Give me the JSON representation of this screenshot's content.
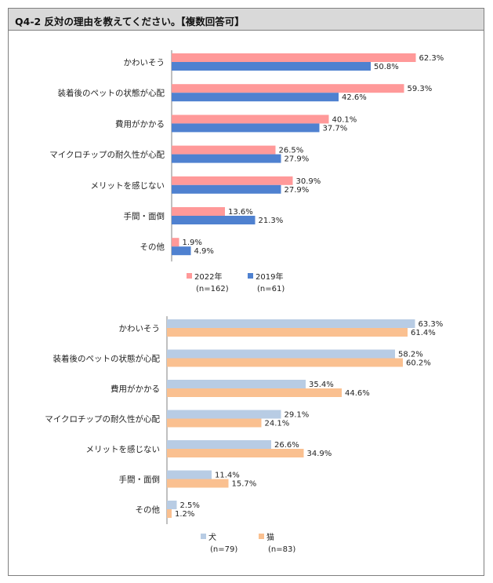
{
  "header": {
    "title": "Q4-2 反対の理由を教えてください。【複数回答可】"
  },
  "chart_data": [
    {
      "type": "bar",
      "orientation": "horizontal",
      "categories": [
        "かわいそう",
        "装着後のペットの状態が心配",
        "費用がかかる",
        "マイクロチップの耐久性が心配",
        "メリットを感じない",
        "手間・面倒",
        "その他"
      ],
      "series": [
        {
          "name": "2022年",
          "n": "(n=162)",
          "color": "#ff9999",
          "values": [
            62.3,
            59.3,
            40.1,
            26.5,
            30.9,
            13.6,
            1.9
          ],
          "labels": [
            "62.3%",
            "59.3%",
            "40.1%",
            "26.5%",
            "30.9%",
            "13.6%",
            "1.9%"
          ]
        },
        {
          "name": "2019年",
          "n": "(n=61)",
          "color": "#4f81d0",
          "values": [
            50.8,
            42.6,
            37.7,
            27.9,
            27.9,
            21.3,
            4.9
          ],
          "labels": [
            "50.8%",
            "42.6%",
            "37.7%",
            "27.9%",
            "27.9%",
            "21.3%",
            "4.9%"
          ]
        }
      ],
      "xlim": [
        0,
        70
      ],
      "legend": "bottom"
    },
    {
      "type": "bar",
      "orientation": "horizontal",
      "categories": [
        "かわいそう",
        "装着後のペットの状態が心配",
        "費用がかかる",
        "マイクロチップの耐久性が心配",
        "メリットを感じない",
        "手間・面倒",
        "その他"
      ],
      "series": [
        {
          "name": "犬",
          "n": "(n=79)",
          "color": "#b8cce4",
          "values": [
            63.3,
            58.2,
            35.4,
            29.1,
            26.6,
            11.4,
            2.5
          ],
          "labels": [
            "63.3%",
            "58.2%",
            "35.4%",
            "29.1%",
            "26.6%",
            "11.4%",
            "2.5%"
          ]
        },
        {
          "name": "猫",
          "n": "(n=83)",
          "color": "#fac090",
          "values": [
            61.4,
            60.2,
            44.6,
            24.1,
            34.9,
            15.7,
            1.2
          ],
          "labels": [
            "61.4%",
            "60.2%",
            "44.6%",
            "24.1%",
            "34.9%",
            "15.7%",
            "1.2%"
          ]
        }
      ],
      "xlim": [
        0,
        70
      ],
      "legend": "bottom"
    }
  ]
}
